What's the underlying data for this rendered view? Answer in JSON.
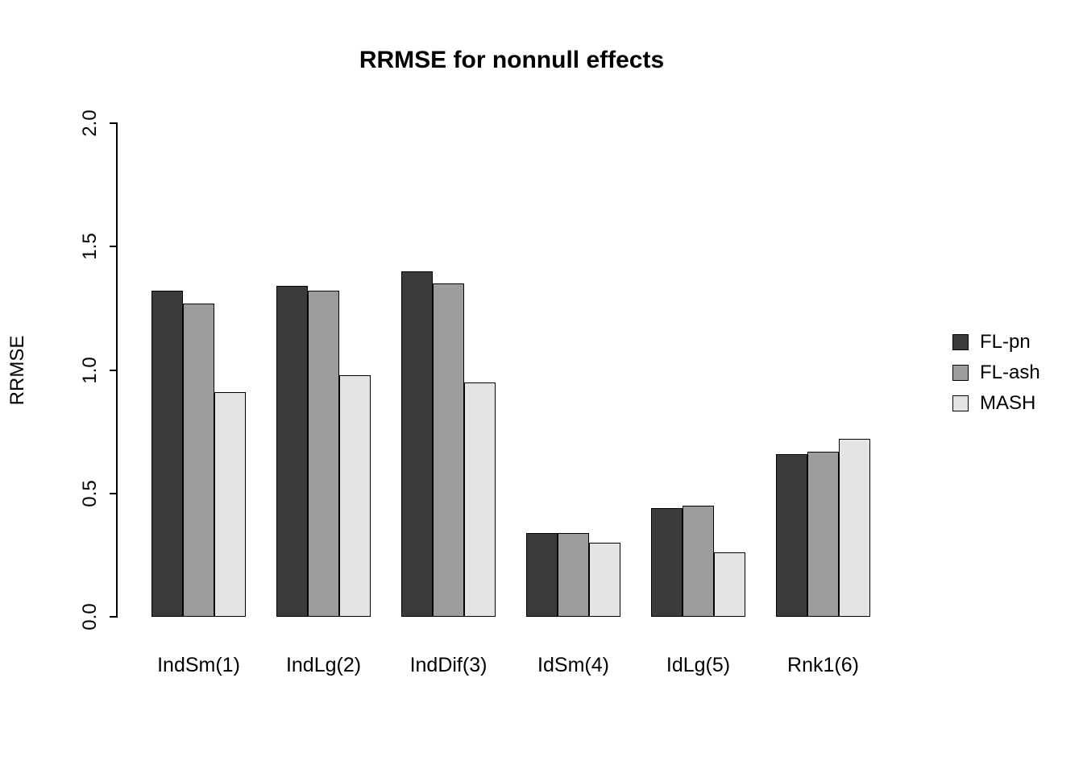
{
  "chart_data": {
    "type": "bar",
    "title": "RRMSE for nonnull effects",
    "xlabel": "",
    "ylabel": "RRMSE",
    "categories": [
      "IndSm(1)",
      "IndLg(2)",
      "IndDif(3)",
      "IdSm(4)",
      "IdLg(5)",
      "Rnk1(6)"
    ],
    "series": [
      {
        "name": "FL-pn",
        "color": "#3b3b3b",
        "values": [
          1.32,
          1.34,
          1.4,
          0.34,
          0.44,
          0.66
        ]
      },
      {
        "name": "FL-ash",
        "color": "#9c9c9c",
        "values": [
          1.27,
          1.32,
          1.35,
          0.34,
          0.45,
          0.67
        ]
      },
      {
        "name": "MASH",
        "color": "#e4e4e4",
        "values": [
          0.91,
          0.98,
          0.95,
          0.3,
          0.26,
          0.72
        ]
      }
    ],
    "ylim": [
      0,
      2
    ],
    "yticks": [
      "0.0",
      "0.5",
      "1.0",
      "1.5",
      "2.0"
    ],
    "grid": false,
    "legend_position": "right",
    "bar_border_color": "#000000",
    "axis_color": "#000000"
  }
}
